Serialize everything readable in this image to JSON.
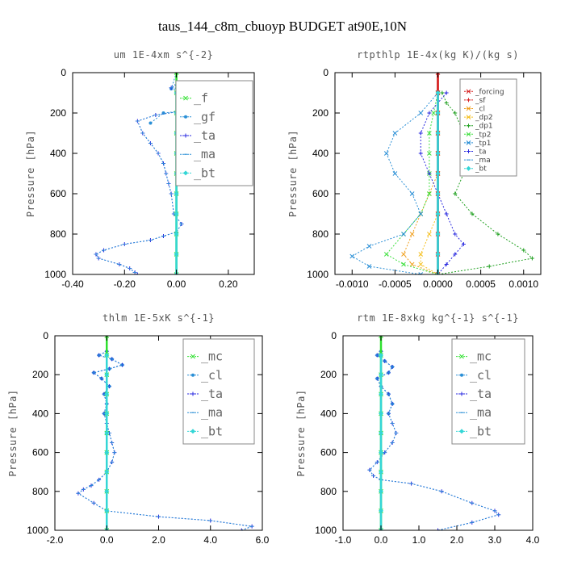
{
  "suptitle": "taus_144_c8m_cbuoyp  BUDGET at90E,10N",
  "chart_data": [
    {
      "type": "line",
      "title": "um  1E-4xm s^{-2}",
      "ylabel": "Pressure [hPa]",
      "xlim": [
        -0.4,
        0.3
      ],
      "ylim": [
        1000,
        0
      ],
      "yticks": [
        "0",
        "200",
        "400",
        "600",
        "800",
        "1000"
      ],
      "xticks": [
        "-0.40",
        "-0.20",
        "0.00",
        "0.20"
      ],
      "legend_style": "large",
      "series": [
        {
          "name": "_f",
          "color": "#2ee02e",
          "marker": "x",
          "x": [
            0,
            0,
            0,
            0,
            0,
            0,
            0,
            0,
            0,
            0,
            0
          ],
          "y": [
            0,
            100,
            200,
            300,
            400,
            500,
            600,
            700,
            800,
            900,
            1000
          ]
        },
        {
          "name": "_gf",
          "color": "#2a8fd6",
          "marker": "dot",
          "x": [
            0.0,
            -0.02,
            0.05,
            0.15,
            0.23,
            0.1,
            -0.05,
            -0.1
          ],
          "y": [
            0,
            80,
            100,
            120,
            140,
            180,
            200,
            250
          ]
        },
        {
          "name": "_ta",
          "color": "#2a2ae0",
          "marker": "+",
          "x": [
            0.0,
            -0.02,
            0.2,
            0.23,
            0.08,
            -0.08,
            -0.15,
            -0.13,
            -0.1,
            -0.07,
            -0.05,
            -0.04,
            -0.03,
            -0.02,
            -0.01,
            0.02,
            0.0,
            -0.05,
            -0.1,
            -0.2,
            -0.28,
            -0.31,
            -0.3,
            -0.22,
            -0.18,
            -0.16,
            -0.15
          ],
          "y": [
            60,
            75,
            100,
            140,
            180,
            210,
            240,
            300,
            350,
            400,
            450,
            500,
            550,
            600,
            700,
            750,
            790,
            810,
            830,
            850,
            880,
            900,
            920,
            950,
            970,
            990,
            1000
          ]
        },
        {
          "name": "_ma",
          "color": "#2a8fd6",
          "marker": "-",
          "x": [
            0.0,
            -0.02,
            0.2,
            0.23,
            0.08,
            -0.08,
            -0.15,
            -0.13,
            -0.1,
            -0.07,
            -0.05,
            -0.04,
            -0.03,
            -0.02,
            -0.01,
            0.02,
            0.0,
            -0.05,
            -0.1,
            -0.2,
            -0.28,
            -0.31,
            -0.3,
            -0.22,
            -0.18,
            -0.16,
            -0.15
          ],
          "y": [
            60,
            75,
            100,
            140,
            180,
            210,
            240,
            300,
            350,
            400,
            450,
            500,
            550,
            600,
            700,
            750,
            790,
            810,
            830,
            850,
            880,
            900,
            920,
            950,
            970,
            990,
            1000
          ]
        },
        {
          "name": "_bt",
          "color": "#33d6d6",
          "marker": "diamond",
          "x": [
            0,
            0,
            0,
            0,
            0,
            0,
            0,
            0,
            0,
            0
          ],
          "y": [
            100,
            200,
            300,
            400,
            500,
            600,
            700,
            800,
            900,
            1000
          ]
        }
      ]
    },
    {
      "type": "line",
      "title": "rtpthlp  1E-4x(kg K)/(kg s)",
      "ylabel": "Pressure [hPa]",
      "xlim": [
        -0.0012,
        0.0012
      ],
      "ylim": [
        1000,
        0
      ],
      "yticks": [
        "0",
        "200",
        "400",
        "600",
        "800",
        "1000"
      ],
      "xticks": [
        "-0.0010",
        "-0.0005",
        "0.0000",
        "0.0005",
        "0.0010"
      ],
      "legend_style": "small",
      "series": [
        {
          "name": "_forcing",
          "color": "#d62020",
          "marker": "x",
          "x": [
            0,
            0,
            0,
            0,
            0,
            0,
            0,
            0,
            0,
            0,
            0
          ],
          "y": [
            0,
            100,
            200,
            300,
            400,
            500,
            600,
            700,
            800,
            900,
            1000
          ]
        },
        {
          "name": "_sf",
          "color": "#d62020",
          "marker": "+",
          "x": [
            0,
            0,
            0,
            0,
            0,
            0,
            0,
            0,
            0,
            0,
            0
          ],
          "y": [
            0,
            100,
            200,
            300,
            400,
            500,
            600,
            700,
            800,
            900,
            1000
          ]
        },
        {
          "name": "_cl",
          "color": "#f0a020",
          "marker": "x",
          "x": [
            0,
            0,
            0,
            0,
            0,
            -0.0001,
            -0.0002,
            -0.0003,
            -0.0004,
            -0.0003,
            0.0
          ],
          "y": [
            100,
            200,
            300,
            400,
            500,
            600,
            700,
            800,
            900,
            950,
            1000
          ]
        },
        {
          "name": "_dp2",
          "color": "#f5c020",
          "marker": "x",
          "x": [
            0,
            0,
            0,
            0,
            0,
            0,
            0,
            -0.0001,
            -0.0002,
            -0.0002,
            0.0
          ],
          "y": [
            100,
            200,
            300,
            400,
            500,
            600,
            700,
            800,
            900,
            950,
            1000
          ]
        },
        {
          "name": "_dp1",
          "color": "#20a020",
          "marker": "+",
          "x": [
            5e-05,
            0.0001,
            0.0002,
            0.0003,
            0.0004,
            0.0003,
            0.0002,
            0.0004,
            0.0007,
            0.001,
            0.0011,
            0.0006,
            0.0
          ],
          "y": [
            100,
            150,
            200,
            300,
            400,
            500,
            600,
            700,
            800,
            880,
            920,
            960,
            1000
          ]
        },
        {
          "name": "_tp2",
          "color": "#40e040",
          "marker": "x",
          "x": [
            0,
            -5e-05,
            -0.0001,
            -0.0001,
            -0.0001,
            -0.0001,
            -0.0002,
            -0.0004,
            -0.0006,
            -0.0004,
            0.0
          ],
          "y": [
            100,
            200,
            300,
            400,
            500,
            600,
            700,
            800,
            900,
            950,
            1000
          ]
        },
        {
          "name": "_tp1",
          "color": "#2a8fd6",
          "marker": "x",
          "x": [
            0,
            -0.0002,
            -0.0005,
            -0.0006,
            -0.0005,
            -0.0003,
            -0.0002,
            -0.0004,
            -0.0008,
            -0.001,
            -0.0008,
            -0.0002
          ],
          "y": [
            100,
            200,
            300,
            400,
            500,
            600,
            700,
            800,
            860,
            910,
            960,
            1000
          ]
        },
        {
          "name": "_ta",
          "color": "#2a2ae0",
          "marker": "+",
          "x": [
            0.0001,
            -0.0001,
            -0.0002,
            -0.0002,
            -0.0001,
            0.0,
            0.0001,
            0.0002,
            0.0003,
            0.0002,
            0.0001,
            0.0
          ],
          "y": [
            100,
            200,
            300,
            400,
            500,
            600,
            700,
            800,
            850,
            900,
            950,
            1000
          ]
        },
        {
          "name": "_ma",
          "color": "#2a8fd6",
          "marker": "-",
          "x": [
            0,
            0,
            0,
            0,
            0,
            0,
            0,
            0,
            0,
            0
          ],
          "y": [
            100,
            200,
            300,
            400,
            500,
            600,
            700,
            800,
            900,
            1000
          ]
        },
        {
          "name": "_bt",
          "color": "#33d6d6",
          "marker": "diamond",
          "x": [
            0,
            0,
            0,
            0,
            0,
            0,
            0,
            0,
            0,
            0
          ],
          "y": [
            100,
            200,
            300,
            400,
            500,
            600,
            700,
            800,
            900,
            1000
          ]
        }
      ]
    },
    {
      "type": "line",
      "title": "thlm  1E-5xK s^{-1}",
      "ylabel": "Pressure [hPa]",
      "xlim": [
        -2.0,
        6.0
      ],
      "ylim": [
        1000,
        0
      ],
      "yticks": [
        "0",
        "200",
        "400",
        "600",
        "800",
        "1000"
      ],
      "xticks": [
        "-2.0",
        "0.0",
        "2.0",
        "4.0",
        "6.0"
      ],
      "legend_style": "large",
      "series": [
        {
          "name": "_mc",
          "color": "#2ee02e",
          "marker": "x",
          "x": [
            0,
            0,
            0,
            0,
            0,
            0,
            0,
            0,
            0,
            0,
            0
          ],
          "y": [
            0,
            100,
            200,
            300,
            400,
            500,
            600,
            700,
            800,
            900,
            1000
          ]
        },
        {
          "name": "_cl",
          "color": "#2a8fd6",
          "marker": "dot",
          "x": [
            0.0,
            -0.3,
            0.2,
            0.6,
            0.1,
            -0.5,
            -0.2,
            0.1,
            -0.1,
            0.0,
            -0.1
          ],
          "y": [
            80,
            100,
            120,
            150,
            170,
            190,
            220,
            260,
            300,
            350,
            400
          ]
        },
        {
          "name": "_ta",
          "color": "#2a2ae0",
          "marker": "+",
          "x": [
            0.0,
            -0.3,
            0.2,
            0.6,
            0.1,
            -0.5,
            -0.2,
            0.1,
            -0.1,
            0.0,
            -0.1,
            0.0,
            0.1,
            0.2,
            0.3,
            0.2,
            0.0,
            -0.3,
            -0.6,
            -0.9,
            -1.1,
            -0.5,
            0.0,
            2.0,
            4.0,
            5.6,
            5.2
          ],
          "y": [
            80,
            100,
            120,
            150,
            170,
            190,
            220,
            260,
            300,
            350,
            400,
            450,
            500,
            550,
            600,
            650,
            700,
            740,
            770,
            790,
            810,
            860,
            900,
            930,
            950,
            980,
            1000
          ]
        },
        {
          "name": "_ma",
          "color": "#2a8fd6",
          "marker": "-",
          "x": [
            0.0,
            -0.3,
            0.2,
            0.6,
            0.1,
            -0.5,
            -0.2,
            0.1,
            -0.1,
            0.0,
            -0.1,
            0.0,
            0.1,
            0.2,
            0.3,
            0.2,
            0.0,
            -0.3,
            -0.6,
            -0.9,
            -1.1,
            -0.5,
            0.0,
            2.0,
            4.0,
            5.6,
            5.2
          ],
          "y": [
            80,
            100,
            120,
            150,
            170,
            190,
            220,
            260,
            300,
            350,
            400,
            450,
            500,
            550,
            600,
            650,
            700,
            740,
            770,
            790,
            810,
            860,
            900,
            930,
            950,
            980,
            1000
          ]
        },
        {
          "name": "_bt",
          "color": "#33d6d6",
          "marker": "diamond",
          "x": [
            0,
            0,
            0,
            0,
            0,
            0,
            0,
            0,
            0,
            0
          ],
          "y": [
            100,
            200,
            300,
            400,
            500,
            600,
            700,
            800,
            900,
            1000
          ]
        }
      ]
    },
    {
      "type": "line",
      "title": "rtm  1E-8xkg kg^{-1} s^{-1}",
      "ylabel": "Pressure [hPa]",
      "xlim": [
        -1.0,
        4.0
      ],
      "ylim": [
        1000,
        0
      ],
      "yticks": [
        "0",
        "200",
        "400",
        "600",
        "800",
        "1000"
      ],
      "xticks": [
        "-1.0",
        "0.0",
        "1.0",
        "2.0",
        "3.0",
        "4.0"
      ],
      "legend_style": "large",
      "series": [
        {
          "name": "_mc",
          "color": "#2ee02e",
          "marker": "x",
          "x": [
            0,
            0,
            0,
            0,
            0,
            0,
            0,
            0,
            0,
            0,
            0
          ],
          "y": [
            0,
            100,
            200,
            300,
            400,
            500,
            600,
            700,
            800,
            900,
            1000
          ]
        },
        {
          "name": "_cl",
          "color": "#2a8fd6",
          "marker": "dot",
          "x": [
            0.0,
            -0.1,
            0.1,
            0.3,
            0.2,
            -0.1,
            0.0,
            0.2,
            0.3,
            0.2
          ],
          "y": [
            80,
            100,
            130,
            160,
            190,
            220,
            260,
            300,
            350,
            400
          ]
        },
        {
          "name": "_ta",
          "color": "#2a2ae0",
          "marker": "+",
          "x": [
            0.0,
            -0.1,
            0.1,
            0.3,
            0.2,
            -0.1,
            0.0,
            0.2,
            0.3,
            0.2,
            0.3,
            0.4,
            0.3,
            0.1,
            -0.1,
            -0.3,
            -0.2,
            0.0,
            0.8,
            1.6,
            2.4,
            3.0,
            3.1,
            2.4,
            1.5
          ],
          "y": [
            80,
            100,
            130,
            160,
            190,
            220,
            260,
            300,
            350,
            400,
            450,
            500,
            550,
            600,
            650,
            690,
            720,
            740,
            760,
            800,
            860,
            900,
            920,
            960,
            1000
          ]
        },
        {
          "name": "_ma",
          "color": "#2a8fd6",
          "marker": "-",
          "x": [
            0.0,
            -0.1,
            0.1,
            0.3,
            0.2,
            -0.1,
            0.0,
            0.2,
            0.3,
            0.2,
            0.3,
            0.4,
            0.3,
            0.1,
            -0.1,
            -0.3,
            -0.2,
            0.0,
            0.8,
            1.6,
            2.4,
            3.0,
            3.1,
            2.4,
            1.5
          ],
          "y": [
            80,
            100,
            130,
            160,
            190,
            220,
            260,
            300,
            350,
            400,
            450,
            500,
            550,
            600,
            650,
            690,
            720,
            740,
            760,
            800,
            860,
            900,
            920,
            960,
            1000
          ]
        },
        {
          "name": "_bt",
          "color": "#33d6d6",
          "marker": "diamond",
          "x": [
            0,
            0,
            0,
            0,
            0,
            0,
            0,
            0,
            0,
            0
          ],
          "y": [
            100,
            200,
            300,
            400,
            500,
            600,
            700,
            800,
            900,
            1000
          ]
        }
      ]
    }
  ]
}
